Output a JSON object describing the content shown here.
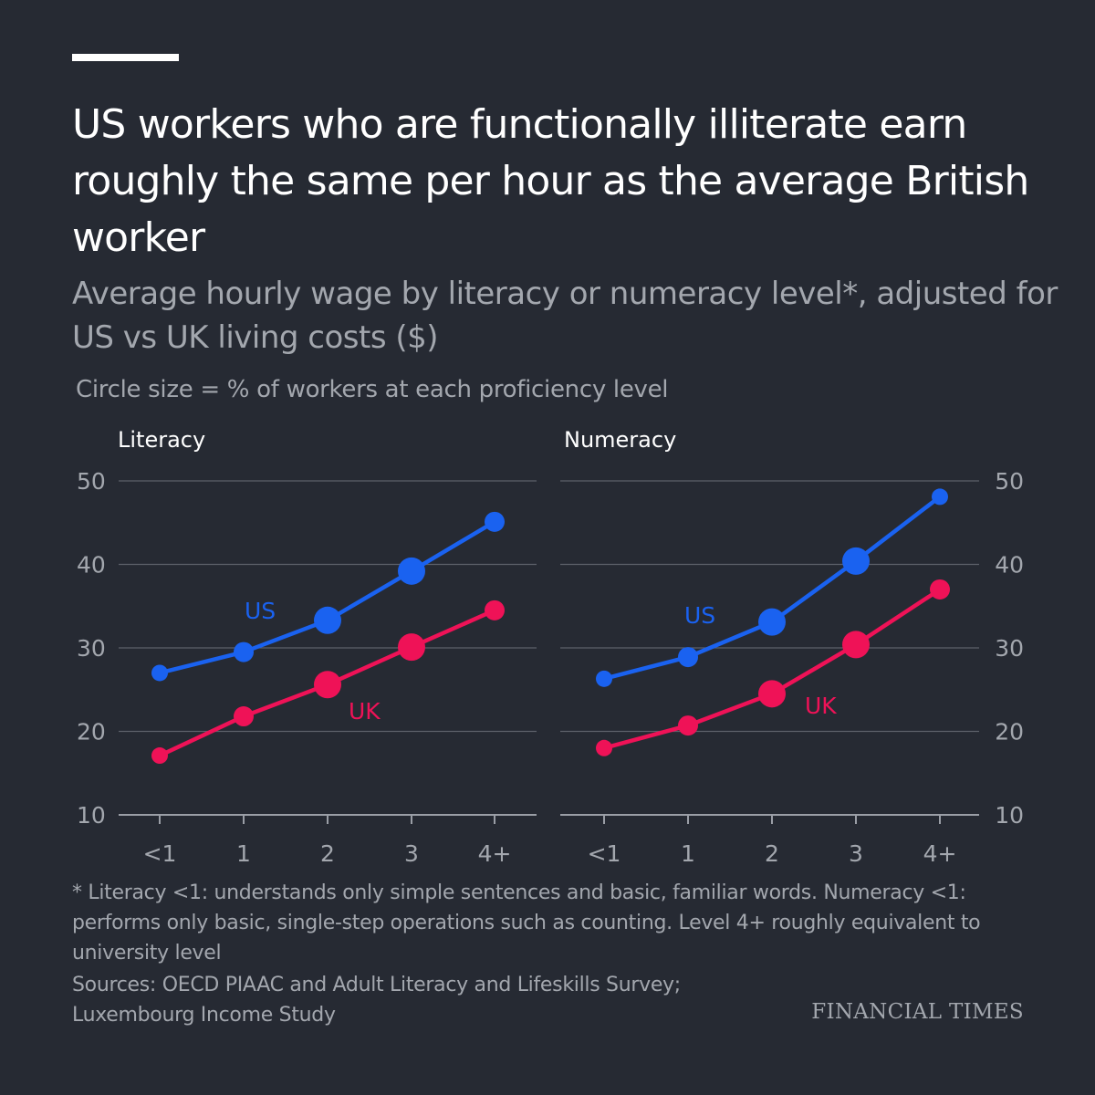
{
  "title": "US workers who are functionally illiterate earn roughly the same per hour as the average British worker",
  "subtitle": "Average hourly wage by literacy or numeracy level*, adjusted for US vs UK living costs ($)",
  "circle_note": "Circle size = % of workers at each proficiency level",
  "footnote": "* Literacy <1: understands only simple sentences and basic, familiar words. Numeracy <1: performs only basic, single-step operations such as counting. Level 4+ roughly equivalent to university level",
  "sources": "Sources: OECD PIAAC and Adult Literacy and Lifeskills Survey; Luxembourg Income Study",
  "brand": "FINANCIAL TIMES",
  "colors": {
    "background": "#262a33",
    "us": "#1a62f0",
    "uk": "#ef1257",
    "grid": "#5d616a",
    "text_muted": "#a3a7ae"
  },
  "chart_data": [
    {
      "type": "line",
      "panel": "Literacy",
      "categories": [
        "<1",
        "1",
        "2",
        "3",
        "4+"
      ],
      "ylim": [
        10,
        50
      ],
      "yticks": [
        10,
        20,
        30,
        40,
        50
      ],
      "y_axis_side": "left",
      "series": [
        {
          "name": "US",
          "values": [
            27,
            29.5,
            33.3,
            39.2,
            45.1
          ],
          "circle_size_share": [
            "small",
            "medium",
            "large",
            "large",
            "medium"
          ]
        },
        {
          "name": "UK",
          "values": [
            17.1,
            21.8,
            25.6,
            30.1,
            34.5
          ],
          "circle_size_share": [
            "small",
            "medium",
            "large",
            "large",
            "medium"
          ]
        }
      ]
    },
    {
      "type": "line",
      "panel": "Numeracy",
      "categories": [
        "<1",
        "1",
        "2",
        "3",
        "4+"
      ],
      "ylim": [
        10,
        50
      ],
      "yticks": [
        10,
        20,
        30,
        40,
        50
      ],
      "y_axis_side": "right",
      "series": [
        {
          "name": "US",
          "values": [
            26.3,
            28.9,
            33.1,
            40.4,
            48.1
          ],
          "circle_size_share": [
            "small",
            "medium",
            "large",
            "large",
            "small"
          ]
        },
        {
          "name": "UK",
          "values": [
            18.0,
            20.7,
            24.5,
            30.4,
            37.0
          ],
          "circle_size_share": [
            "small",
            "medium",
            "large",
            "large",
            "medium"
          ]
        }
      ]
    }
  ]
}
